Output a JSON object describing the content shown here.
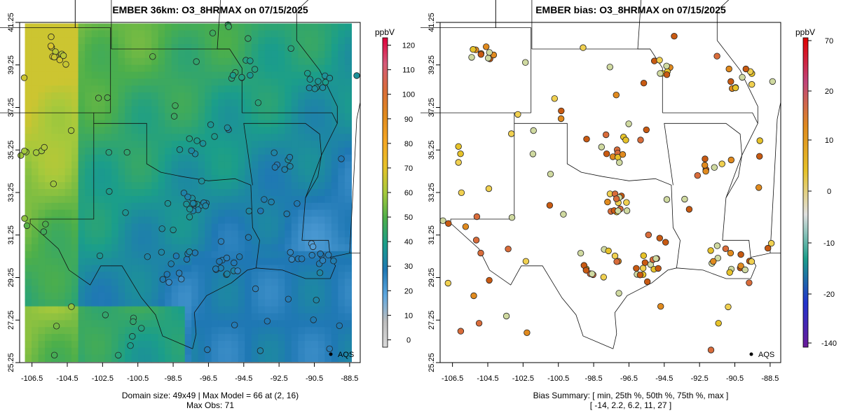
{
  "left": {
    "title": "EMBER 36km: O3_8HRMAX on 07/15/2025",
    "unit": "ppbV",
    "legend_label": "AQS",
    "caption_line1": "Domain size: 49x49 | Max Model = 66 at (2, 16)",
    "caption_line2": "Max Obs: 71",
    "colorbar_ticks": [
      "0",
      "10",
      "20",
      "30",
      "40",
      "50",
      "60",
      "70",
      "80",
      "90",
      "100",
      "110",
      "120"
    ],
    "colorbar_range": [
      -3,
      123
    ]
  },
  "right": {
    "title": "EMBER bias: O3_8HRMAX on 07/15/2025",
    "unit": "ppbV",
    "legend_label": "AQS",
    "caption_line1": "Bias Summary: [ min, 25th %, 50th %, 75th %, max ]",
    "caption_line2": "[ -14,   2.2,   6.2,   11,   27 ]",
    "colorbar_ticks": [
      "-140",
      "-20",
      "-10",
      "0",
      "10",
      "20",
      "70"
    ]
  },
  "axes": {
    "x_ticks": [
      "-106.5",
      "-104.5",
      "-102.5",
      "-100.5",
      "-98.5",
      "-96.5",
      "-94.5",
      "-92.5",
      "-90.5",
      "-88.5"
    ],
    "x_values": [
      -106.5,
      -104.5,
      -102.5,
      -100.5,
      -98.5,
      -96.5,
      -94.5,
      -92.5,
      -90.5,
      -88.5
    ],
    "y_ticks": [
      "25.25",
      "27.25",
      "29.25",
      "31.25",
      "33.25",
      "35.25",
      "37.25",
      "39.25",
      "41.25"
    ],
    "y_values": [
      25.25,
      27.25,
      29.25,
      31.25,
      33.25,
      35.25,
      37.25,
      39.25,
      41.25
    ],
    "lon_range": [
      -107.2,
      -87.9
    ],
    "lat_range": [
      25.25,
      41.25
    ]
  },
  "colors": {
    "scale_stops": [
      "#d9d9d9",
      "#bdbdbd",
      "#5fa8e0",
      "#1f78b4",
      "#1b9e8a",
      "#4daf4a",
      "#a6c93c",
      "#e6c229",
      "#f5a623",
      "#e08a1e",
      "#d96c3a",
      "#d45a7a",
      "#e0003a"
    ],
    "bias_stops": [
      "#6a1b9a",
      "#2233cc",
      "#1b9e8a",
      "#e0e0e0",
      "#e6c229",
      "#e08a1e",
      "#c0447a",
      "#e00000"
    ]
  }
}
